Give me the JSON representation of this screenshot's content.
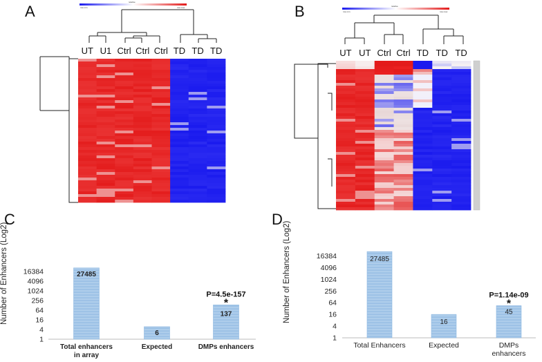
{
  "panels": {
    "a": "A",
    "b": "B",
    "c": "C",
    "d": "D"
  },
  "colors": {
    "red": "#e31b1b",
    "blue": "#1a1aee",
    "white": "#f7f2f2",
    "bar": "#a9cbea",
    "bar_line": "#8db7e1"
  },
  "chart_data": [
    {
      "type": "heatmap",
      "panel": "A",
      "columns": [
        "UT",
        "U1",
        "Ctrl",
        "Ctrl",
        "Ctrl",
        "TD",
        "TD",
        "TD"
      ],
      "column_groups": [
        "red",
        "red",
        "red",
        "red",
        "red",
        "blue",
        "blue",
        "blue"
      ],
      "colorbar": {
        "title": "relative",
        "low": "row min",
        "high": "row max"
      }
    },
    {
      "type": "heatmap",
      "panel": "B",
      "columns": [
        "UT",
        "UT",
        "Ctrl",
        "Ctrl",
        "TD",
        "TD",
        "TD"
      ],
      "column_groups": [
        "red",
        "red",
        "mixed",
        "mixed",
        "blue",
        "blue",
        "blue"
      ],
      "colorbar": {
        "title": "relative",
        "low": "row min",
        "high": "row max"
      }
    },
    {
      "type": "bar",
      "panel": "C",
      "categories": [
        "Total enhancers in array",
        "Expected",
        "DMPs enhancers"
      ],
      "category_lines": [
        [
          "Total enhancers",
          "in array"
        ],
        [
          "Expected"
        ],
        [
          "DMPs enhancers"
        ]
      ],
      "values": [
        27485,
        6,
        137
      ],
      "value_labels": [
        "27485",
        "6",
        "137"
      ],
      "annotation": {
        "category_index": 2,
        "text": "P=4.5e-157",
        "marker": "*"
      },
      "ylabel": "Number of Enhancers (Log2)",
      "yscale": "log2",
      "yticks": [
        1,
        4,
        16,
        64,
        256,
        1024,
        4096,
        16384
      ],
      "ylim": [
        1,
        32768
      ]
    },
    {
      "type": "bar",
      "panel": "D",
      "categories": [
        "Total Enhancers",
        "Expected",
        "DMPs enhancers"
      ],
      "category_lines": [
        [
          "Total Enhancers"
        ],
        [
          "Expected"
        ],
        [
          "DMPs",
          "enhancers"
        ]
      ],
      "values": [
        27485,
        16,
        45
      ],
      "value_labels": [
        "27485",
        "16",
        "45"
      ],
      "annotation": {
        "category_index": 2,
        "text": "P=1.14e-09",
        "marker": "*"
      },
      "ylabel": "Number of Enhancers (Log2)",
      "yscale": "log2",
      "yticks": [
        1,
        4,
        16,
        64,
        256,
        1024,
        4096,
        16384
      ],
      "ylim": [
        1,
        32768
      ]
    }
  ]
}
